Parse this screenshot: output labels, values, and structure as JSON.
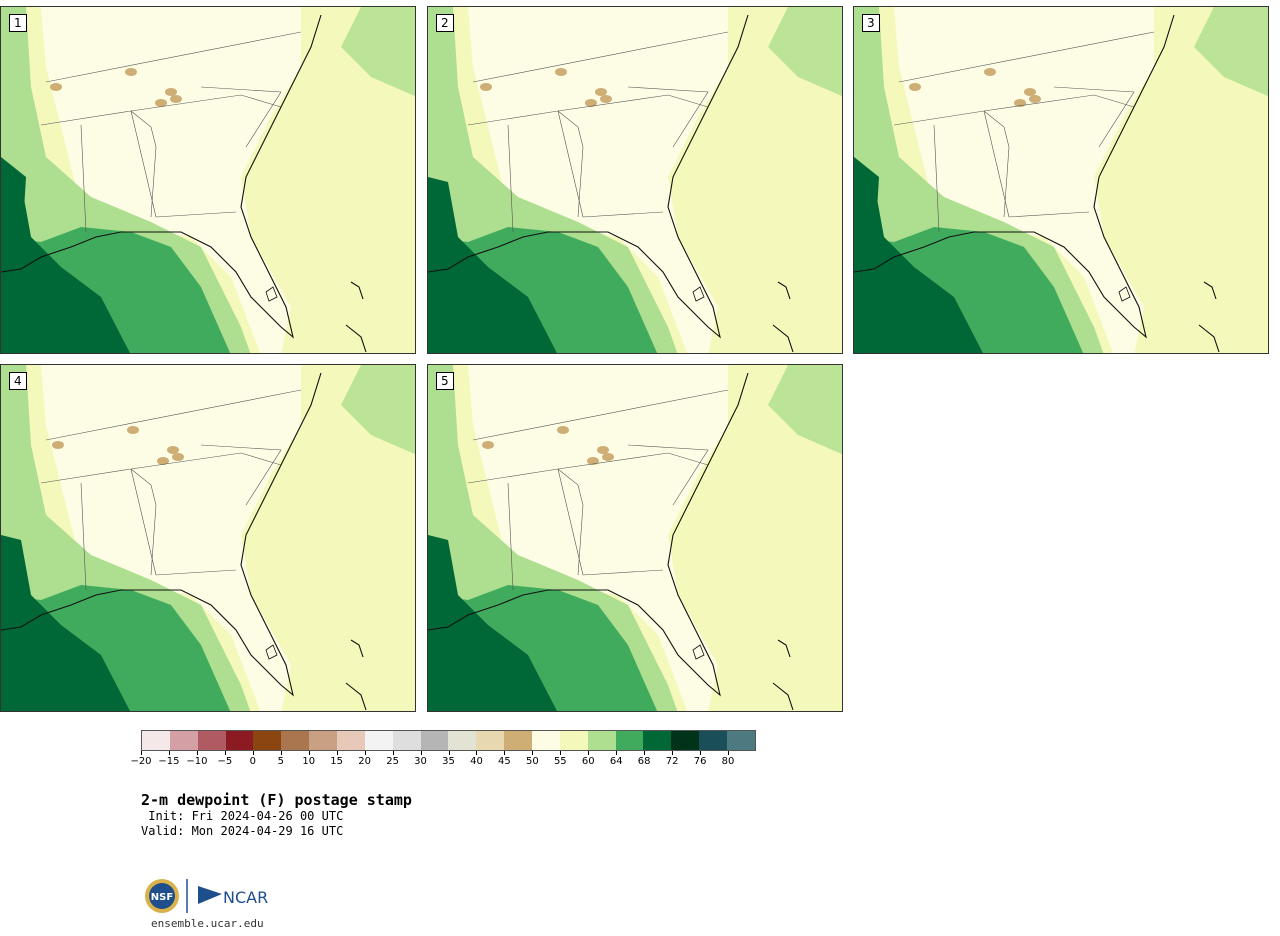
{
  "panels": [
    {
      "label": "1"
    },
    {
      "label": "2"
    },
    {
      "label": "3"
    },
    {
      "label": "4"
    },
    {
      "label": "5"
    }
  ],
  "colorbar": {
    "colors": [
      "#f5e8e8",
      "#d4a0a6",
      "#b05b63",
      "#8b1a22",
      "#8a4510",
      "#a97650",
      "#c9a084",
      "#e6c9b8",
      "#f3f3f3",
      "#dedede",
      "#b5b5b5",
      "#e3e3d4",
      "#e8d8b0",
      "#cfae75",
      "#fdfde6",
      "#f4f8bb",
      "#aede8f",
      "#41ab5d",
      "#006837",
      "#00331a",
      "#1a4f5a",
      "#4d7a80"
    ],
    "tick_labels": [
      "−20",
      "−15",
      "−10",
      "−5",
      "0",
      "5",
      "10",
      "15",
      "20",
      "25",
      "30",
      "35",
      "40",
      "45",
      "50",
      "55",
      "60",
      "64",
      "68",
      "72",
      "76",
      "80"
    ]
  },
  "title": "2-m dewpoint (F) postage stamp",
  "init": " Init: Fri 2024-04-26 00 UTC",
  "valid": "Valid: Mon 2024-04-29 16 UTC",
  "footer": {
    "site": "ensemble.ucar.edu",
    "ncar_text": "NCAR",
    "nsf_text": "NSF"
  }
}
